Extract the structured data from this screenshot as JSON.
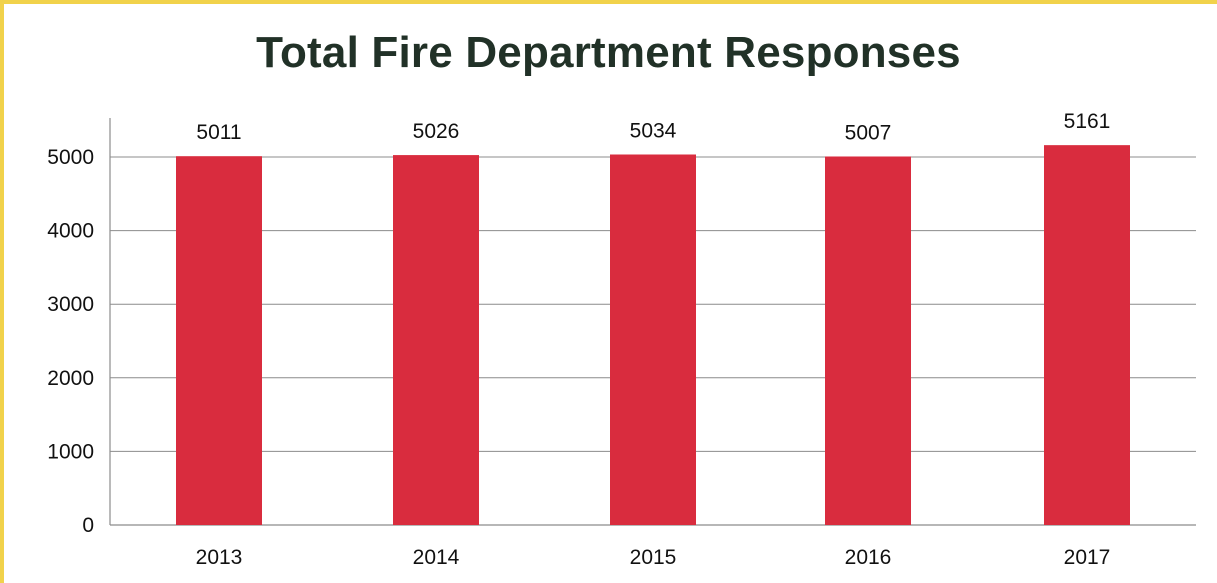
{
  "chart_data": {
    "type": "bar",
    "title": "Total Fire Department Responses",
    "xlabel": "",
    "ylabel": "",
    "categories": [
      "2013",
      "2014",
      "2015",
      "2016",
      "2017"
    ],
    "values": [
      5011,
      5026,
      5034,
      5007,
      5161
    ],
    "data_labels": [
      "5011",
      "5026",
      "5034",
      "5007",
      "5161"
    ],
    "y_ticks": [
      0,
      1000,
      2000,
      3000,
      4000,
      5000
    ],
    "y_tick_labels": [
      "0",
      "1000",
      "2000",
      "3000",
      "4000",
      "5000"
    ],
    "ylim": [
      0,
      5500
    ],
    "grid": true,
    "legend": "none",
    "colors": {
      "bar": "#d92c3e",
      "grid": "#8c8c8c",
      "axis": "#8c8c8c",
      "title": "#213127",
      "frame": "#f1d24b"
    }
  }
}
